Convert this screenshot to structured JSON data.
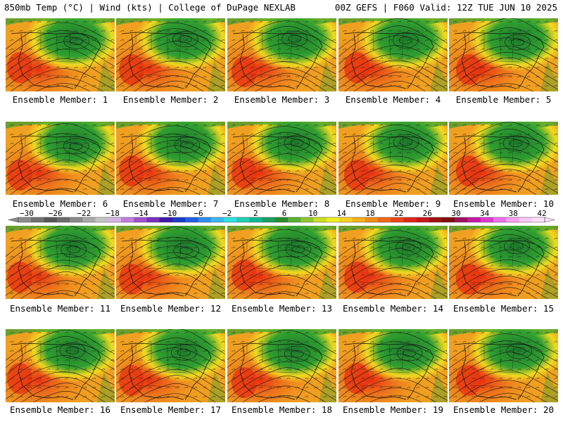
{
  "header": {
    "left": "850mb Temp (°C) | Wind (kts) | College of DuPage NEXLAB",
    "right": "00Z GEFS | F060 Valid: 12Z TUE JUN 10 2025"
  },
  "panels": [
    {
      "label": "Ensemble Member: 1"
    },
    {
      "label": "Ensemble Member: 2"
    },
    {
      "label": "Ensemble Member: 3"
    },
    {
      "label": "Ensemble Member: 4"
    },
    {
      "label": "Ensemble Member: 5"
    },
    {
      "label": "Ensemble Member: 6"
    },
    {
      "label": "Ensemble Member: 7"
    },
    {
      "label": "Ensemble Member: 8"
    },
    {
      "label": "Ensemble Member: 9"
    },
    {
      "label": "Ensemble Member: 10"
    },
    {
      "label": "Ensemble Member: 11"
    },
    {
      "label": "Ensemble Member: 12"
    },
    {
      "label": "Ensemble Member: 13"
    },
    {
      "label": "Ensemble Member: 14"
    },
    {
      "label": "Ensemble Member: 15"
    },
    {
      "label": "Ensemble Member: 16"
    },
    {
      "label": "Ensemble Member: 17"
    },
    {
      "label": "Ensemble Member: 18"
    },
    {
      "label": "Ensemble Member: 19"
    },
    {
      "label": "Ensemble Member: 20"
    }
  ],
  "colorbar": {
    "ticks": [
      "−30",
      "−26",
      "−22",
      "−18",
      "−14",
      "−10",
      "−6",
      "−2",
      "2",
      "6",
      "10",
      "14",
      "18",
      "22",
      "26",
      "30",
      "34",
      "38",
      "42"
    ],
    "colors": [
      "#8c8c8c",
      "#707070",
      "#585858",
      "#6c6c6c",
      "#8a8a8a",
      "#a9a9a9",
      "#c4c4c4",
      "#d8b4e8",
      "#bf7ee0",
      "#a050d0",
      "#7a2fbf",
      "#3c1aa8",
      "#1a3cc8",
      "#2060e8",
      "#2c8cf0",
      "#38b8f0",
      "#2ee0e0",
      "#20d0b0",
      "#10b890",
      "#18a060",
      "#2a8c2a",
      "#58b030",
      "#90c830",
      "#c8e020",
      "#f0f020",
      "#f8d020",
      "#f8b018",
      "#f08c18",
      "#f06818",
      "#e84818",
      "#e02818",
      "#c81818",
      "#a01010",
      "#800c10",
      "#a01060",
      "#c818a8",
      "#e038d0",
      "#f070e8",
      "#f8a0f0",
      "#f8c8f4",
      "#fce0fa"
    ]
  },
  "colors": {
    "hot": "#e83010",
    "warm": "#f0a020",
    "yellow": "#f0e020",
    "green": "#30a030",
    "dark_green": "#1c7a2a"
  }
}
